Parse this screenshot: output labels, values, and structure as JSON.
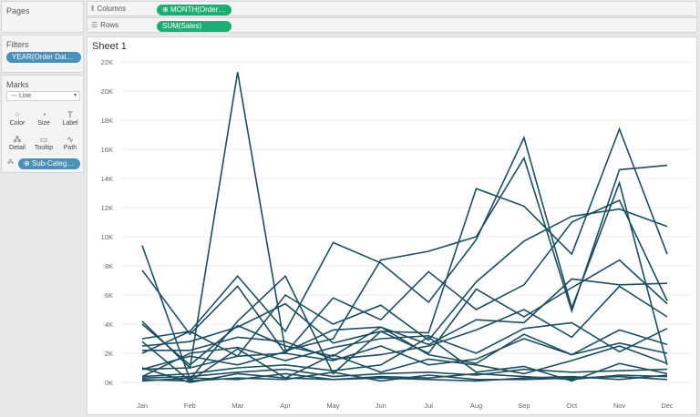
{
  "pages": {
    "title": "Pages"
  },
  "filters": {
    "title": "Filters",
    "pill": "YEAR(Order Date): 2..."
  },
  "marks": {
    "title": "Marks",
    "type_label": "Line",
    "buttons": [
      {
        "label": "Color",
        "icon": "color-icon",
        "glyph": "⁘"
      },
      {
        "label": "Size",
        "icon": "size-icon",
        "glyph": "◔"
      },
      {
        "label": "Label",
        "icon": "label-icon",
        "glyph": "T"
      },
      {
        "label": "Detail",
        "icon": "detail-icon",
        "glyph": "⁂"
      },
      {
        "label": "Tooltip",
        "icon": "tooltip-icon",
        "glyph": "▭"
      },
      {
        "label": "Path",
        "icon": "path-icon",
        "glyph": "∿"
      }
    ],
    "detail_pill": "Sub-Category"
  },
  "columns": {
    "label": "Columns",
    "pill": "MONTH(Order Da..."
  },
  "rows": {
    "label": "Rows",
    "pill": "SUM(Sales)"
  },
  "sheet": {
    "title": "Sheet 1"
  },
  "colors": {
    "line": "#1d4e5f",
    "grid": "#eeeeee",
    "pill_blue": "#4a90b8",
    "pill_green": "#1fad73"
  },
  "chart_data": {
    "type": "line",
    "title": "",
    "xlabel": "",
    "ylabel": "",
    "categories": [
      "Jan",
      "Feb",
      "Mar",
      "Apr",
      "May",
      "Jun",
      "Jul",
      "Aug",
      "Sep",
      "Oct",
      "Nov",
      "Dec"
    ],
    "ylim": [
      0,
      22000
    ],
    "yticks": [
      0,
      2000,
      4000,
      6000,
      8000,
      10000,
      12000,
      14000,
      16000,
      18000,
      20000,
      22000
    ],
    "ytick_labels": [
      "0K",
      "2K",
      "4K",
      "6K",
      "8K",
      "10K",
      "12K",
      "14K",
      "16K",
      "18K",
      "20K",
      "22K"
    ],
    "grid": true,
    "series": [
      {
        "values": [
          4200,
          1000,
          21300,
          2200,
          3000,
          8400,
          9000,
          10000,
          15400,
          4900,
          14600,
          14900
        ]
      },
      {
        "values": [
          9400,
          200,
          4200,
          7300,
          600,
          3500,
          3400,
          13300,
          12100,
          8800,
          17400,
          8800
        ]
      },
      {
        "values": [
          2000,
          3500,
          7300,
          3500,
          9600,
          8200,
          5500,
          9800,
          16800,
          5100,
          13700,
          1200
        ]
      },
      {
        "values": [
          3000,
          3500,
          1800,
          6000,
          4000,
          5300,
          2900,
          6900,
          9700,
          11400,
          11900,
          10700
        ]
      },
      {
        "values": [
          7700,
          3300,
          6600,
          2000,
          5800,
          4300,
          7600,
          5000,
          6700,
          11000,
          12500,
          5600
        ]
      },
      {
        "values": [
          2500,
          2800,
          3800,
          5400,
          2700,
          3500,
          2000,
          6400,
          4500,
          6500,
          8400,
          5400
        ]
      },
      {
        "values": [
          4000,
          1200,
          3900,
          2500,
          1800,
          3800,
          2600,
          4300,
          4100,
          7100,
          6700,
          6800
        ]
      },
      {
        "values": [
          2200,
          2200,
          3100,
          2800,
          1600,
          1900,
          2500,
          3600,
          5000,
          3100,
          6600,
          4500
        ]
      },
      {
        "values": [
          400,
          2000,
          2400,
          1500,
          2400,
          3000,
          3200,
          2000,
          3700,
          4100,
          2100,
          3700
        ]
      },
      {
        "values": [
          900,
          1800,
          1200,
          2100,
          3600,
          3800,
          1900,
          1300,
          3300,
          1900,
          3600,
          2600
        ]
      },
      {
        "values": [
          900,
          1000,
          1800,
          2000,
          1500,
          2500,
          1200,
          1600,
          3000,
          1900,
          2700,
          2000
        ]
      },
      {
        "values": [
          400,
          600,
          1000,
          1200,
          800,
          1200,
          3100,
          700,
          1100,
          100,
          1300,
          600
        ]
      },
      {
        "values": [
          300,
          400,
          700,
          900,
          400,
          600,
          700,
          500,
          900,
          700,
          800,
          900
        ]
      },
      {
        "values": [
          100,
          300,
          200,
          600,
          200,
          300,
          200,
          100,
          300,
          400,
          200,
          500
        ]
      },
      {
        "values": [
          200,
          100,
          300,
          200,
          700,
          100,
          500,
          200,
          200,
          300,
          400,
          200
        ]
      },
      {
        "values": [
          1000,
          0,
          600,
          300,
          200,
          400,
          300,
          600,
          400,
          200,
          500,
          400
        ]
      },
      {
        "values": [
          2800,
          100,
          2300,
          300,
          1900,
          700,
          1600,
          1200,
          600,
          1500,
          2500,
          1300
        ]
      }
    ]
  }
}
